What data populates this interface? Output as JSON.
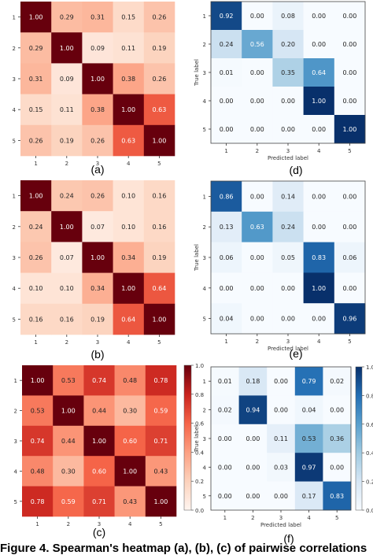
{
  "chart_data": [
    {
      "type": "heatmap",
      "panel_label": "(a)",
      "colormap": "reds",
      "x_ticks": [
        "1",
        "2",
        "3",
        "4",
        "5"
      ],
      "y_ticks": [
        "1",
        "2",
        "3",
        "4",
        "5"
      ],
      "values": [
        [
          1.0,
          0.29,
          0.31,
          0.15,
          0.26
        ],
        [
          0.29,
          1.0,
          0.09,
          0.11,
          0.19
        ],
        [
          0.31,
          0.09,
          1.0,
          0.38,
          0.26
        ],
        [
          0.15,
          0.11,
          0.38,
          1.0,
          0.63
        ],
        [
          0.26,
          0.19,
          0.26,
          0.63,
          1.0
        ]
      ]
    },
    {
      "type": "heatmap",
      "panel_label": "(b)",
      "colormap": "reds",
      "x_ticks": [
        "1",
        "2",
        "3",
        "4",
        "5"
      ],
      "y_ticks": [
        "1",
        "2",
        "3",
        "4",
        "5"
      ],
      "values": [
        [
          1.0,
          0.24,
          0.26,
          0.1,
          0.16
        ],
        [
          0.24,
          1.0,
          0.07,
          0.1,
          0.16
        ],
        [
          0.26,
          0.07,
          1.0,
          0.34,
          0.19
        ],
        [
          0.1,
          0.1,
          0.34,
          1.0,
          0.64
        ],
        [
          0.16,
          0.16,
          0.19,
          0.64,
          1.0
        ]
      ]
    },
    {
      "type": "heatmap",
      "panel_label": "(c)",
      "colormap": "reds",
      "colorbar": true,
      "colorbar_ticks": [
        "1.0",
        "0.8",
        "0.6",
        "0.4",
        "0.2",
        "0.0"
      ],
      "x_ticks": [
        "1",
        "2",
        "3",
        "4",
        "5"
      ],
      "y_ticks": [
        "1",
        "2",
        "3",
        "4",
        "5"
      ],
      "values": [
        [
          1.0,
          0.53,
          0.74,
          0.48,
          0.78
        ],
        [
          0.53,
          1.0,
          0.44,
          0.3,
          0.59
        ],
        [
          0.74,
          0.44,
          1.0,
          0.6,
          0.71
        ],
        [
          0.48,
          0.3,
          0.6,
          1.0,
          0.43
        ],
        [
          0.78,
          0.59,
          0.71,
          0.43,
          1.0
        ]
      ]
    },
    {
      "type": "heatmap",
      "panel_label": "(d)",
      "colormap": "blues",
      "xlabel": "Predicted label",
      "ylabel": "True label",
      "x_ticks": [
        "1",
        "2",
        "3",
        "4",
        "5"
      ],
      "y_ticks": [
        "1",
        "2",
        "3",
        "4",
        "5"
      ],
      "values": [
        [
          0.92,
          0.0,
          0.08,
          0.0,
          0.0
        ],
        [
          0.24,
          0.56,
          0.2,
          0.0,
          0.0
        ],
        [
          0.01,
          0.0,
          0.35,
          0.64,
          0.0
        ],
        [
          0.0,
          0.0,
          0.0,
          1.0,
          0.0
        ],
        [
          0.0,
          0.0,
          0.0,
          0.0,
          1.0
        ]
      ]
    },
    {
      "type": "heatmap",
      "panel_label": "(e)",
      "colormap": "blues",
      "xlabel": "Predicted label",
      "ylabel": "True label",
      "x_ticks": [
        "1",
        "2",
        "3",
        "4",
        "5"
      ],
      "y_ticks": [
        "1",
        "2",
        "3",
        "4",
        "5"
      ],
      "values": [
        [
          0.86,
          0.0,
          0.14,
          0.0,
          0.0
        ],
        [
          0.13,
          0.63,
          0.24,
          0.0,
          0.0
        ],
        [
          0.06,
          0.0,
          0.05,
          0.83,
          0.06
        ],
        [
          0.0,
          0.0,
          0.0,
          1.0,
          0.0
        ],
        [
          0.04,
          0.0,
          0.0,
          0.0,
          0.96
        ]
      ]
    },
    {
      "type": "heatmap",
      "panel_label": "(f)",
      "colormap": "blues",
      "colorbar": true,
      "colorbar_ticks": [
        "1.0",
        "0.8",
        "0.6",
        "0.4",
        "0.2",
        "0.0"
      ],
      "xlabel": "Predicted label",
      "ylabel": "True label",
      "x_ticks": [
        "1",
        "2",
        "3",
        "4",
        "5"
      ],
      "y_ticks": [
        "1",
        "2",
        "3",
        "4",
        "5"
      ],
      "values": [
        [
          0.01,
          0.18,
          0.0,
          0.79,
          0.02
        ],
        [
          0.02,
          0.94,
          0.0,
          0.04,
          0.0
        ],
        [
          0.0,
          0.0,
          0.11,
          0.53,
          0.36
        ],
        [
          0.0,
          0.0,
          0.03,
          0.97,
          0.0
        ],
        [
          0.0,
          0.0,
          0.0,
          0.17,
          0.83
        ]
      ]
    }
  ],
  "caption": "Figure 4. Spearman's heatmap (a), (b), (c) of pairwise correlations"
}
